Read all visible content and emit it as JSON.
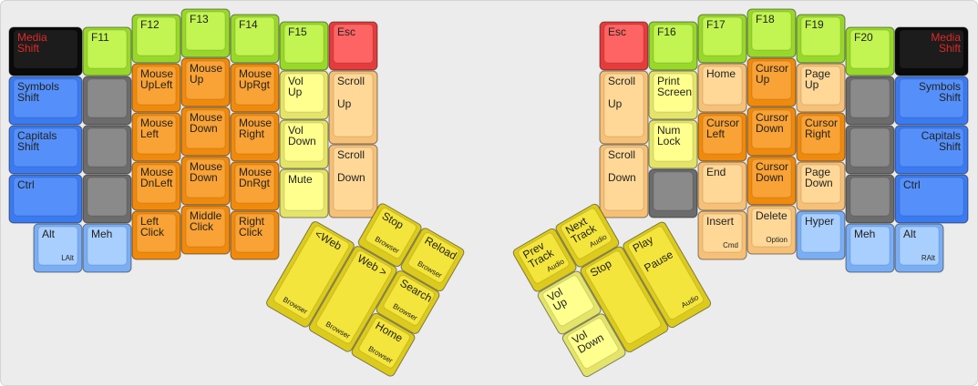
{
  "keyboard": {
    "left": {
      "keys": [
        {
          "label": [
            "Media",
            "Shift"
          ]
        },
        {
          "label": [
            "Symbols",
            "Shift"
          ]
        },
        {
          "label": [
            "Capitals",
            "Shift"
          ]
        },
        {
          "label": [
            "Ctrl"
          ]
        },
        {
          "label": [
            "Alt"
          ],
          "sub": "LAlt"
        },
        {
          "label": [
            "Meh"
          ]
        },
        {
          "label": [
            "F11"
          ]
        },
        {
          "label": [
            "F12"
          ]
        },
        {
          "label": [
            "Mouse",
            "UpLeft"
          ]
        },
        {
          "label": [
            "Mouse",
            "Left"
          ]
        },
        {
          "label": [
            "Mouse",
            "DnLeft"
          ]
        },
        {
          "label": [
            "Left",
            "Click"
          ]
        },
        {
          "label": [
            "F13"
          ]
        },
        {
          "label": [
            "Mouse",
            "Up"
          ]
        },
        {
          "label": [
            "Mouse",
            "Down"
          ]
        },
        {
          "label": [
            "Mouse",
            "Down"
          ]
        },
        {
          "label": [
            "Middle",
            "Click"
          ]
        },
        {
          "label": [
            "F14"
          ]
        },
        {
          "label": [
            "Mouse",
            "UpRgt"
          ]
        },
        {
          "label": [
            "Mouse",
            "Right"
          ]
        },
        {
          "label": [
            "Mouse",
            "DnRgt"
          ]
        },
        {
          "label": [
            "Right",
            "Click"
          ]
        },
        {
          "label": [
            "F15"
          ]
        },
        {
          "label": [
            "Vol",
            "Up"
          ]
        },
        {
          "label": [
            "Vol",
            "Down"
          ]
        },
        {
          "label": [
            "Mute"
          ]
        },
        {
          "label": [
            "Esc"
          ]
        },
        {
          "label": [
            "Scroll",
            "Up"
          ]
        },
        {
          "label": [
            "Scroll",
            "Down"
          ]
        }
      ]
    },
    "right": {
      "keys": [
        {
          "label": [
            "Media",
            "Shift"
          ]
        },
        {
          "label": [
            "Symbols",
            "Shift"
          ]
        },
        {
          "label": [
            "Capitals",
            "Shift"
          ]
        },
        {
          "label": [
            "Ctrl"
          ]
        },
        {
          "label": [
            "Alt"
          ],
          "sub": "RAlt"
        },
        {
          "label": [
            "Meh"
          ]
        },
        {
          "label": [
            "F20"
          ]
        },
        {
          "label": [
            "F19"
          ]
        },
        {
          "label": [
            "Page",
            "Up"
          ]
        },
        {
          "label": [
            "Cursor",
            "Right"
          ]
        },
        {
          "label": [
            "Page",
            "Down"
          ]
        },
        {
          "label": [
            "Hyper"
          ]
        },
        {
          "label": [
            "F18"
          ]
        },
        {
          "label": [
            "Cursor",
            "Up"
          ]
        },
        {
          "label": [
            "Cursor",
            "Down"
          ]
        },
        {
          "label": [
            "Cursor",
            "Down"
          ]
        },
        {
          "label": [
            "Delete"
          ],
          "sub": "Option"
        },
        {
          "label": [
            "F17"
          ]
        },
        {
          "label": [
            "Home"
          ]
        },
        {
          "label": [
            "Cursor",
            "Left"
          ]
        },
        {
          "label": [
            "End"
          ]
        },
        {
          "label": [
            "Insert"
          ],
          "sub": "Cmd"
        },
        {
          "label": [
            "F16"
          ]
        },
        {
          "label": [
            "Print",
            "Screen"
          ]
        },
        {
          "label": [
            "Num",
            "Lock"
          ]
        },
        {
          "label": [
            "Esc"
          ]
        },
        {
          "label": [
            "Scroll",
            "Up"
          ]
        },
        {
          "label": [
            "Scroll",
            "Down"
          ]
        }
      ]
    },
    "left_thumb": {
      "keys": [
        {
          "label": [
            "Stop"
          ],
          "sub": "Browser"
        },
        {
          "label": [
            "Reload"
          ],
          "sub": "Browser"
        },
        {
          "label": [
            "<Web"
          ],
          "sub": "Browser"
        },
        {
          "label": [
            "Web >"
          ],
          "sub": "Browser"
        },
        {
          "label": [
            "Search"
          ],
          "sub": "Browser"
        },
        {
          "label": [
            "Home"
          ],
          "sub": "Browser"
        }
      ]
    },
    "right_thumb": {
      "keys": [
        {
          "label": [
            "Next",
            "Track"
          ],
          "sub": "Audio"
        },
        {
          "label": [
            "Prev",
            "Track"
          ],
          "sub": "Audio"
        },
        {
          "label": [
            "Play",
            "Pause"
          ],
          "sub": "Audio"
        },
        {
          "label": [
            "Stop"
          ]
        },
        {
          "label": [
            "Vol",
            "Up"
          ]
        },
        {
          "label": [
            "Vol",
            "Down"
          ]
        }
      ]
    }
  }
}
